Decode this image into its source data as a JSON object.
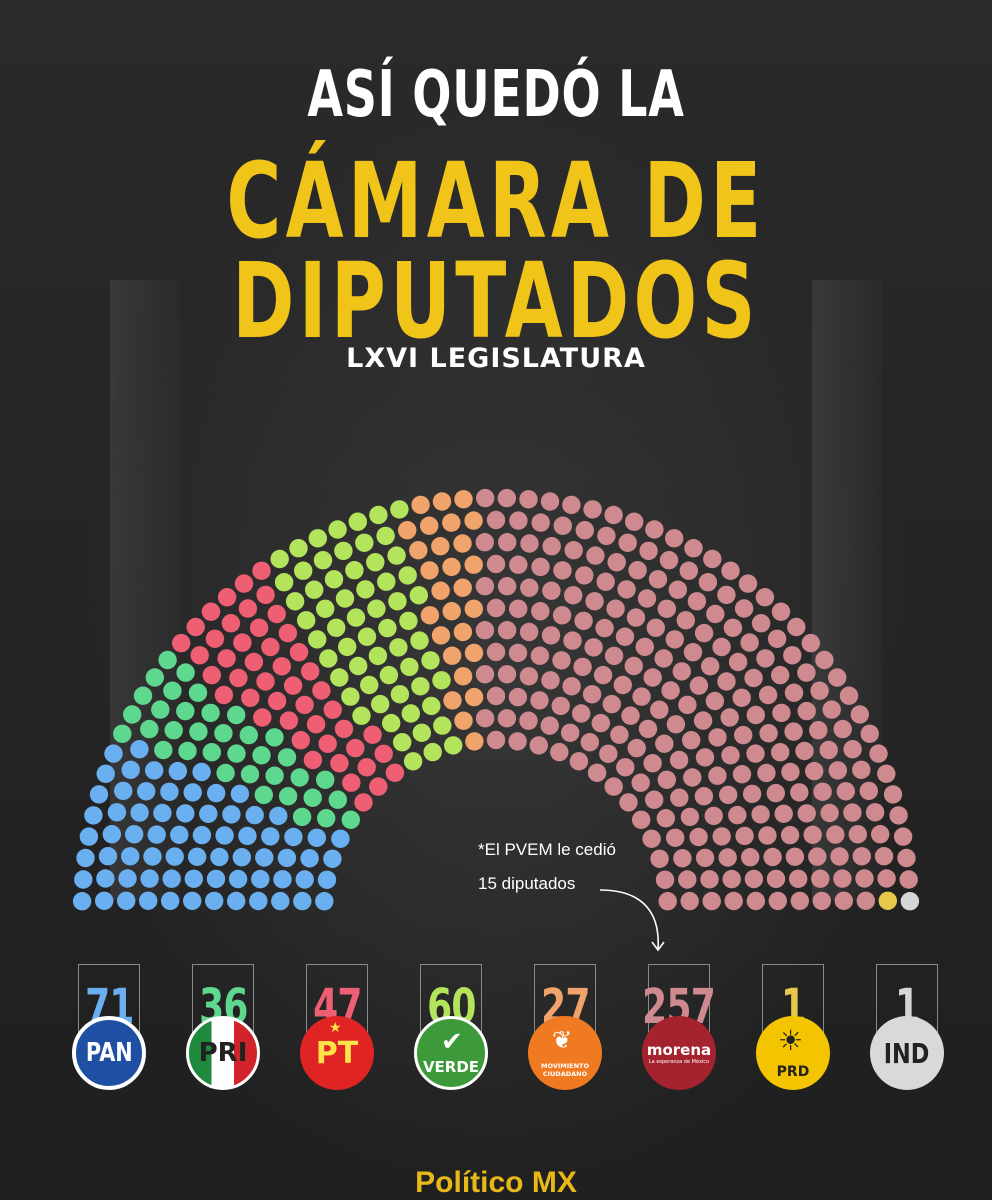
{
  "header": {
    "line1": "ASÍ QUEDÓ LA",
    "line2": "CÁMARA DE",
    "line3": "DIPUTADOS",
    "subtitle": "LXVI LEGISLATURA"
  },
  "note": {
    "line1": "*El PVEM le cedió",
    "line2": "15 diputados"
  },
  "footer": "Político MX",
  "colors": {
    "background": "#262626",
    "title_yellow": "#f0c419"
  },
  "chart_data": {
    "type": "parliament",
    "total_seats": 500,
    "series": [
      {
        "name": "PAN",
        "value": 71,
        "color": "#6ab0f0"
      },
      {
        "name": "PRI",
        "value": 36,
        "color": "#5fd88f"
      },
      {
        "name": "PT",
        "value": 47,
        "color": "#ef5f74"
      },
      {
        "name": "VERDE",
        "value": 60,
        "color": "#b4e35c"
      },
      {
        "name": "MOVIMIENTO CIUDADANO",
        "value": 27,
        "color": "#f0a36a"
      },
      {
        "name": "morena",
        "value": 257,
        "color": "#cf8a8f"
      },
      {
        "name": "PRD",
        "value": 1,
        "color": "#e8c84a"
      },
      {
        "name": "IND",
        "value": 1,
        "color": "#d6d6d6"
      }
    ]
  },
  "cards": [
    {
      "number": "71",
      "logo": "PAN",
      "color": "#6ab0f0"
    },
    {
      "number": "36",
      "logo": "PRI",
      "color": "#5fd88f"
    },
    {
      "number": "47",
      "logo": "PT",
      "color": "#ef5f74"
    },
    {
      "number": "60",
      "logo": "VERDE",
      "color": "#b4e35c"
    },
    {
      "number": "27",
      "logo": "MOVIMIENTO CIUDADANO",
      "color": "#f0a36a"
    },
    {
      "number": "257",
      "logo": "morena",
      "logo_sub": "La esperanza de México",
      "color": "#cf8a8f"
    },
    {
      "number": "1",
      "logo": "PRD",
      "color": "#e8c84a"
    },
    {
      "number": "1",
      "logo": "IND",
      "color": "#d6d6d6"
    }
  ]
}
